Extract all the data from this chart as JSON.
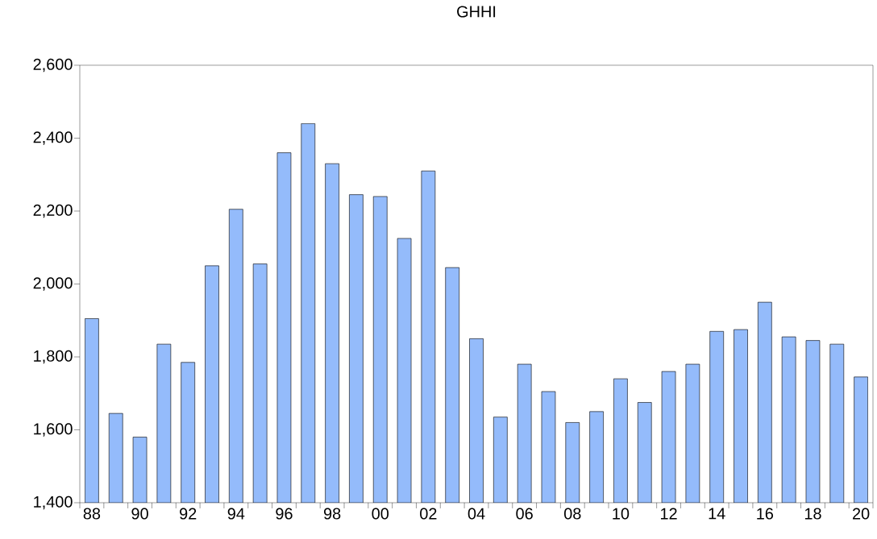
{
  "chart_data": {
    "type": "bar",
    "title": "GHHI",
    "categories": [
      "88",
      null,
      "90",
      null,
      "92",
      null,
      "94",
      null,
      "96",
      null,
      "98",
      null,
      "00",
      null,
      "02",
      null,
      "04",
      null,
      "06",
      null,
      "08",
      null,
      "10",
      null,
      "12",
      null,
      "14",
      null,
      "16",
      null,
      "18",
      null,
      "20"
    ],
    "values": [
      1905,
      1645,
      1580,
      1835,
      1785,
      2050,
      2205,
      2055,
      2360,
      2440,
      2330,
      2245,
      2240,
      2125,
      2310,
      2045,
      1850,
      1635,
      1780,
      1705,
      1620,
      1650,
      1740,
      1675,
      1760,
      1780,
      1870,
      1875,
      1950,
      1855,
      1845,
      1835,
      1745
    ],
    "color": "#94bbfb",
    "ylim": [
      1400,
      2600
    ],
    "yticks": [
      {
        "value": 1400,
        "label": "1,400"
      },
      {
        "value": 1600,
        "label": "1,600"
      },
      {
        "value": 1800,
        "label": "1,800"
      },
      {
        "value": 2000,
        "label": "2,000"
      },
      {
        "value": 2200,
        "label": "2,200"
      },
      {
        "value": 2400,
        "label": "2,400"
      },
      {
        "value": 2600,
        "label": "2,600"
      }
    ],
    "grid": false
  }
}
